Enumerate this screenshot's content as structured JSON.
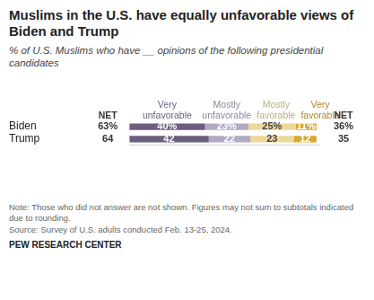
{
  "chart_data": {
    "type": "bar",
    "orientation": "horizontal",
    "stacked": true,
    "data_labels": true,
    "tick_labels": "y",
    "grid": false,
    "title": "Muslims in the U.S. have equally unfavorable views of Biden and Trump",
    "subtitle": "% of U.S. Muslims who have __ opinions of the following presidential candidates",
    "categories": [
      "Biden",
      "Trump"
    ],
    "series": [
      {
        "name": "Very unfavorable",
        "color": "#6b5e80",
        "values": [
          40,
          42
        ],
        "value_labels": [
          "40%",
          "42"
        ]
      },
      {
        "name": "Mostly unfavorable",
        "color": "#b3a9c3",
        "values": [
          23,
          22
        ],
        "value_labels": [
          "23%",
          "22"
        ]
      },
      {
        "name": "Mostly favorable",
        "color": "#ecd89a",
        "values": [
          25,
          23
        ],
        "value_labels": [
          "25%",
          "23"
        ]
      },
      {
        "name": "Very favorable",
        "color": "#d9a730",
        "values": [
          11,
          12
        ],
        "value_labels": [
          "11%",
          "12"
        ]
      }
    ],
    "xlim": [
      0,
      100
    ],
    "xticks": [],
    "net_unfavorable": {
      "label": "NET",
      "values": [
        63,
        64
      ],
      "value_labels": [
        "63%",
        "64"
      ]
    },
    "net_favorable": {
      "label": "NET",
      "values": [
        36,
        35
      ],
      "value_labels": [
        "36%",
        "35"
      ]
    },
    "note": "Note: Those who did not answer are not shown. Figures may not sum to subtotals indicated due to rounding.",
    "source": "Source: Survey of U.S. adults conducted Feb. 13-25, 2024.",
    "credit": "PEW RESEARCH CENTER"
  }
}
